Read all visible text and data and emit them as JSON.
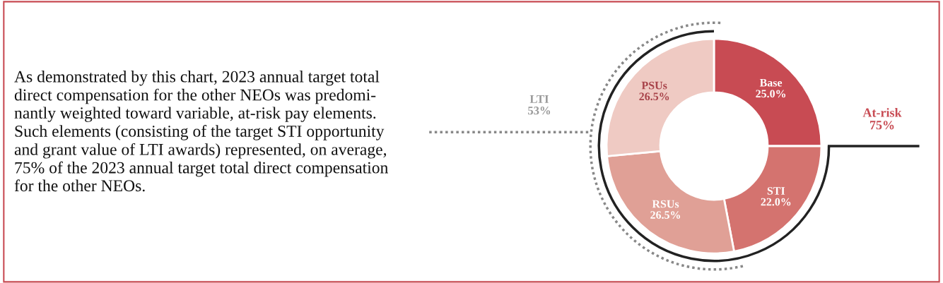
{
  "chart_data": {
    "type": "donut",
    "categories": [
      "Base",
      "STI",
      "RSUs",
      "PSUs"
    ],
    "values": [
      25.0,
      22.0,
      26.5,
      26.5
    ],
    "colors": [
      "#c84b53",
      "#d4736f",
      "#e0a096",
      "#efcac3"
    ],
    "value_labels": [
      "25.0%",
      "22.0%",
      "26.5%",
      "26.5%"
    ],
    "annotations": [
      "As demonstrated by this chart, 2023 annual target total\ndirect compensation for the other NEOs was predomi-\nnantly weighted toward variable, at-risk pay elements.\nSuch elements (consisting of the target STI opportunity\nand grant value of LTI awards) represented, on average,\n75% of the 2023 annual target total direct compensation\nfor the other NEOs.",
      "LTI\n53%",
      "At-risk\n75%"
    ],
    "legend": false
  }
}
